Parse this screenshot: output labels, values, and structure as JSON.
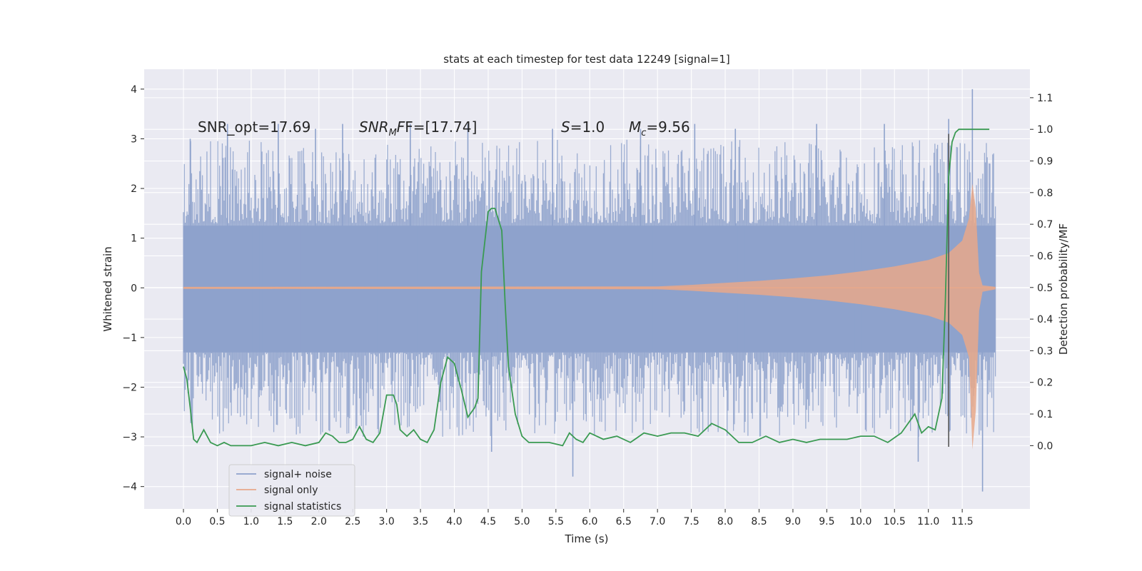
{
  "chart_data": {
    "type": "line",
    "title": "stats at each timestep for test data 12249 [signal=1]",
    "xlabel": "Time (s)",
    "ylabel": "Whitened strain",
    "ylabel_right": "Detection probability/MF",
    "xlim": [
      -0.58,
      12.5
    ],
    "ylim": [
      -4.45,
      4.4
    ],
    "ylim_right": [
      -0.2,
      1.19
    ],
    "x_ticks": [
      0.0,
      0.5,
      1.0,
      1.5,
      2.0,
      2.5,
      3.0,
      3.5,
      4.0,
      4.5,
      5.0,
      5.5,
      6.0,
      6.5,
      7.0,
      7.5,
      8.0,
      8.5,
      9.0,
      9.5,
      10.0,
      10.5,
      11.0,
      11.5
    ],
    "x_tick_labels": [
      "0.0",
      "0.5",
      "1.0",
      "1.5",
      "2.0",
      "2.5",
      "3.0",
      "3.5",
      "4.0",
      "4.5",
      "5.0",
      "5.5",
      "6.0",
      "6.5",
      "7.0",
      "7.5",
      "8.0",
      "8.5",
      "9.0",
      "9.5",
      "10.0",
      "10.5",
      "11.0",
      "11.5"
    ],
    "y_ticks": [
      -4,
      -3,
      -2,
      -1,
      0,
      1,
      2,
      3,
      4
    ],
    "y_tick_labels": [
      "−4",
      "−3",
      "−2",
      "−1",
      "0",
      "1",
      "2",
      "3",
      "4"
    ],
    "y_ticks_right": [
      0.0,
      0.1,
      0.2,
      0.3,
      0.4,
      0.5,
      0.6,
      0.7,
      0.8,
      0.9,
      1.0,
      1.1
    ],
    "y_tick_labels_right": [
      "0.0",
      "0.1",
      "0.2",
      "0.3",
      "0.4",
      "0.5",
      "0.6",
      "0.7",
      "0.8",
      "0.9",
      "1.0",
      "1.1"
    ],
    "grid": true,
    "legend_position": "bottom-left",
    "annotations": {
      "snr_opt": "SNR_opt=17.69",
      "snr_mf_prefix": "SNR",
      "snr_mf_sub": "M",
      "snr_mf_suffix": "F=[17.74]",
      "s_var": "S",
      "s_val": "=1.0",
      "mc_var": "M",
      "mc_sub": "c",
      "mc_val": "=9.56"
    },
    "series": [
      {
        "name": "signal+ noise",
        "color": "#8ea2cc",
        "axis": "left",
        "x_range": [
          0.0,
          11.99
        ],
        "core_band": [
          -1.3,
          1.25
        ],
        "peaks_x": [
          0.1,
          0.65,
          1.4,
          1.95,
          2.35,
          3.35,
          4.2,
          4.55,
          5.45,
          5.75,
          6.75,
          7.55,
          8.15,
          9.35,
          10.35,
          10.85,
          11.3,
          11.65,
          11.8
        ],
        "peaks_y": [
          3.0,
          3.3,
          3.3,
          3.2,
          3.3,
          3.3,
          3.3,
          -3.3,
          3.2,
          -3.8,
          3.2,
          3.3,
          3.2,
          3.3,
          3.3,
          -3.5,
          3.4,
          4.0,
          -4.1
        ]
      },
      {
        "name": "signal only",
        "color": "#e8a88a",
        "axis": "left",
        "x": [
          0.0,
          7.0,
          7.5,
          8.0,
          8.5,
          9.0,
          9.5,
          10.0,
          10.5,
          11.0,
          11.3,
          11.5,
          11.6,
          11.65,
          11.7,
          11.75,
          11.8,
          11.99
        ],
        "envelope": [
          0.02,
          0.03,
          0.06,
          0.1,
          0.14,
          0.19,
          0.25,
          0.33,
          0.43,
          0.56,
          0.7,
          0.95,
          1.4,
          2.1,
          1.6,
          0.3,
          0.05,
          0.02
        ]
      },
      {
        "name": "signal statistics",
        "color": "#3a9a52",
        "axis": "right",
        "x": [
          0.0,
          0.05,
          0.1,
          0.15,
          0.2,
          0.3,
          0.4,
          0.5,
          0.6,
          0.7,
          0.8,
          1.0,
          1.2,
          1.4,
          1.6,
          1.8,
          2.0,
          2.1,
          2.2,
          2.3,
          2.4,
          2.5,
          2.6,
          2.7,
          2.8,
          2.9,
          3.0,
          3.1,
          3.15,
          3.2,
          3.3,
          3.4,
          3.5,
          3.6,
          3.7,
          3.8,
          3.9,
          4.0,
          4.1,
          4.2,
          4.3,
          4.35,
          4.4,
          4.5,
          4.55,
          4.6,
          4.7,
          4.75,
          4.8,
          4.9,
          5.0,
          5.1,
          5.2,
          5.4,
          5.6,
          5.7,
          5.8,
          5.9,
          6.0,
          6.2,
          6.4,
          6.6,
          6.8,
          7.0,
          7.2,
          7.4,
          7.6,
          7.8,
          8.0,
          8.2,
          8.4,
          8.6,
          8.8,
          9.0,
          9.2,
          9.4,
          9.6,
          9.8,
          10.0,
          10.2,
          10.4,
          10.6,
          10.8,
          10.9,
          11.0,
          11.1,
          11.2,
          11.25,
          11.3,
          11.35,
          11.4,
          11.45,
          11.5,
          11.6,
          11.7,
          11.8,
          11.9
        ],
        "values": [
          0.25,
          0.21,
          0.12,
          0.02,
          0.01,
          0.05,
          0.01,
          0.0,
          0.01,
          0.0,
          0.0,
          0.0,
          0.01,
          0.0,
          0.01,
          0.0,
          0.01,
          0.04,
          0.03,
          0.01,
          0.01,
          0.02,
          0.06,
          0.02,
          0.01,
          0.04,
          0.16,
          0.16,
          0.13,
          0.05,
          0.03,
          0.05,
          0.02,
          0.01,
          0.05,
          0.2,
          0.28,
          0.26,
          0.18,
          0.09,
          0.12,
          0.15,
          0.55,
          0.74,
          0.75,
          0.75,
          0.68,
          0.45,
          0.25,
          0.1,
          0.03,
          0.01,
          0.01,
          0.01,
          0.0,
          0.04,
          0.02,
          0.01,
          0.04,
          0.02,
          0.03,
          0.01,
          0.04,
          0.03,
          0.04,
          0.04,
          0.03,
          0.07,
          0.05,
          0.01,
          0.01,
          0.03,
          0.01,
          0.02,
          0.01,
          0.02,
          0.02,
          0.02,
          0.03,
          0.03,
          0.01,
          0.04,
          0.1,
          0.04,
          0.06,
          0.05,
          0.15,
          0.45,
          0.85,
          0.96,
          0.99,
          1.0,
          1.0,
          1.0,
          1.0,
          1.0,
          1.0
        ]
      }
    ],
    "vertical_marker_x": 11.3,
    "vertical_marker_color": "#555555"
  }
}
